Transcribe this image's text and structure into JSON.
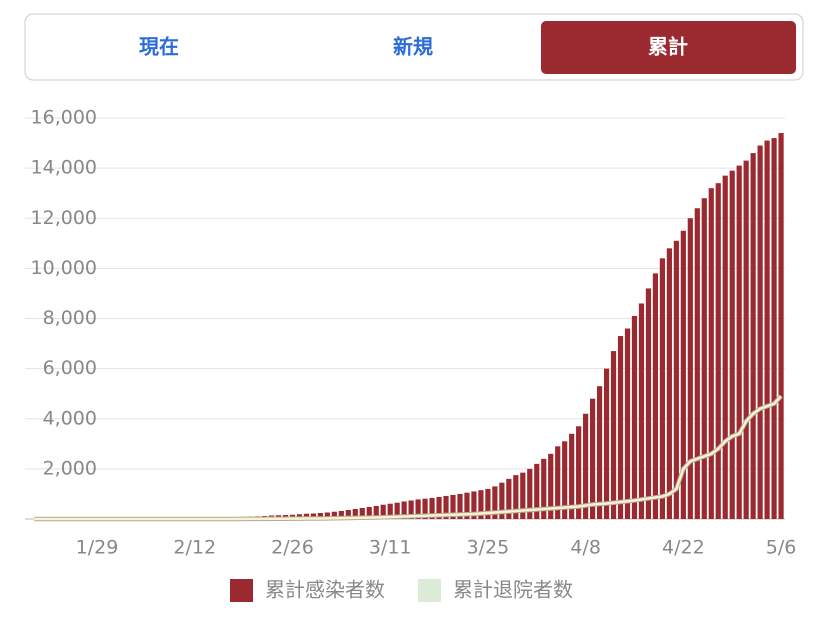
{
  "tabs": [
    "現在",
    "新規",
    "累計"
  ],
  "chart_data": {
    "type": "bar",
    "categories": [
      null,
      null,
      null,
      null,
      null,
      null,
      null,
      null,
      null,
      "1/29",
      null,
      null,
      null,
      null,
      null,
      null,
      null,
      null,
      null,
      null,
      null,
      null,
      null,
      "2/12",
      null,
      null,
      null,
      null,
      null,
      null,
      null,
      null,
      null,
      null,
      null,
      null,
      null,
      "2/26",
      null,
      null,
      null,
      null,
      null,
      null,
      null,
      null,
      null,
      null,
      null,
      null,
      null,
      "3/11",
      null,
      null,
      null,
      null,
      null,
      null,
      null,
      null,
      null,
      null,
      null,
      null,
      null,
      "3/25",
      null,
      null,
      null,
      null,
      null,
      null,
      null,
      null,
      null,
      null,
      null,
      null,
      null,
      "4/8",
      null,
      null,
      null,
      null,
      null,
      null,
      null,
      null,
      null,
      null,
      null,
      null,
      null,
      "4/22",
      null,
      null,
      null,
      null,
      null,
      null,
      null,
      null,
      null,
      null,
      null,
      null,
      null,
      "5/6"
    ],
    "series": [
      {
        "name": "累計感染者数",
        "type": "bar",
        "color": "#9b2a30",
        "values": [
          1,
          1,
          1,
          1,
          1,
          2,
          3,
          4,
          7,
          8,
          11,
          14,
          15,
          17,
          17,
          17,
          18,
          19,
          19,
          20,
          20,
          21,
          21,
          22,
          25,
          30,
          40,
          50,
          60,
          70,
          85,
          95,
          105,
          120,
          140,
          150,
          160,
          170,
          190,
          210,
          220,
          240,
          260,
          290,
          320,
          360,
          400,
          440,
          480,
          520,
          570,
          610,
          650,
          700,
          740,
          780,
          810,
          840,
          880,
          920,
          960,
          1000,
          1050,
          1100,
          1150,
          1200,
          1300,
          1450,
          1600,
          1750,
          1850,
          2000,
          2200,
          2400,
          2600,
          2900,
          3100,
          3400,
          3700,
          4200,
          4800,
          5300,
          6000,
          6700,
          7300,
          7600,
          8100,
          8600,
          9200,
          9800,
          10400,
          10800,
          11100,
          11500,
          12000,
          12400,
          12800,
          13200,
          13400,
          13700,
          13900,
          14100,
          14300,
          14600,
          14900,
          15100,
          15200,
          15400
        ]
      },
      {
        "name": "累計退院者数",
        "type": "line",
        "color": "#dcebd7",
        "values": [
          0,
          0,
          0,
          0,
          0,
          0,
          0,
          0,
          0,
          0,
          0,
          0,
          0,
          0,
          0,
          0,
          0,
          0,
          0,
          0,
          0,
          0,
          0,
          0,
          0,
          0,
          0,
          1,
          1,
          2,
          3,
          4,
          5,
          6,
          8,
          10,
          12,
          14,
          16,
          18,
          20,
          22,
          25,
          30,
          35,
          40,
          45,
          50,
          55,
          60,
          70,
          80,
          90,
          100,
          110,
          120,
          130,
          140,
          150,
          160,
          170,
          180,
          190,
          200,
          220,
          240,
          260,
          280,
          300,
          320,
          340,
          360,
          380,
          400,
          420,
          440,
          460,
          480,
          500,
          540,
          580,
          600,
          620,
          650,
          680,
          710,
          740,
          780,
          820,
          860,
          900,
          1000,
          1200,
          2000,
          2300,
          2400,
          2500,
          2600,
          2800,
          3100,
          3300,
          3400,
          3900,
          4200,
          4400,
          4500,
          4600,
          4900
        ]
      }
    ],
    "ylim": [
      0,
      16000
    ],
    "yticks": [
      {
        "value": 2000,
        "label": "2,000"
      },
      {
        "value": 4000,
        "label": "4,000"
      },
      {
        "value": 6000,
        "label": "6,000"
      },
      {
        "value": 8000,
        "label": "8,000"
      },
      {
        "value": 10000,
        "label": "10,000"
      },
      {
        "value": 12000,
        "label": "12,000"
      },
      {
        "value": 14000,
        "label": "14,000"
      },
      {
        "value": 16000,
        "label": "16,000"
      }
    ],
    "grid": true
  }
}
